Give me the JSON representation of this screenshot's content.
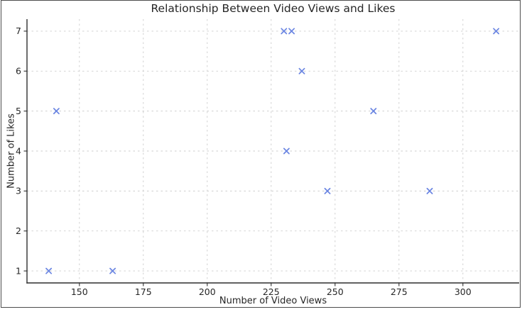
{
  "chart_data": {
    "type": "scatter",
    "title": "Relationship Between Video Views and Likes",
    "xlabel": "Number of Video Views",
    "ylabel": "Number of Likes",
    "points": [
      {
        "x": 138,
        "y": 1
      },
      {
        "x": 141,
        "y": 5
      },
      {
        "x": 163,
        "y": 1
      },
      {
        "x": 230,
        "y": 7
      },
      {
        "x": 231,
        "y": 4
      },
      {
        "x": 233,
        "y": 7
      },
      {
        "x": 237,
        "y": 6
      },
      {
        "x": 247,
        "y": 3
      },
      {
        "x": 265,
        "y": 5
      },
      {
        "x": 287,
        "y": 3
      },
      {
        "x": 313,
        "y": 7
      }
    ],
    "xticks": [
      150,
      175,
      200,
      225,
      250,
      275,
      300
    ],
    "yticks": [
      1,
      2,
      3,
      4,
      5,
      6,
      7
    ],
    "xlim": [
      129.5,
      322.0
    ],
    "ylim": [
      0.7,
      7.3
    ],
    "grid": true,
    "grid_style": "dashed",
    "legend_position": "none",
    "marker": "x",
    "marker_color": "#6a85e2",
    "grid_color": "#cdcdcd",
    "axis_color": "#2f2f2f",
    "text_color": "#262626"
  }
}
